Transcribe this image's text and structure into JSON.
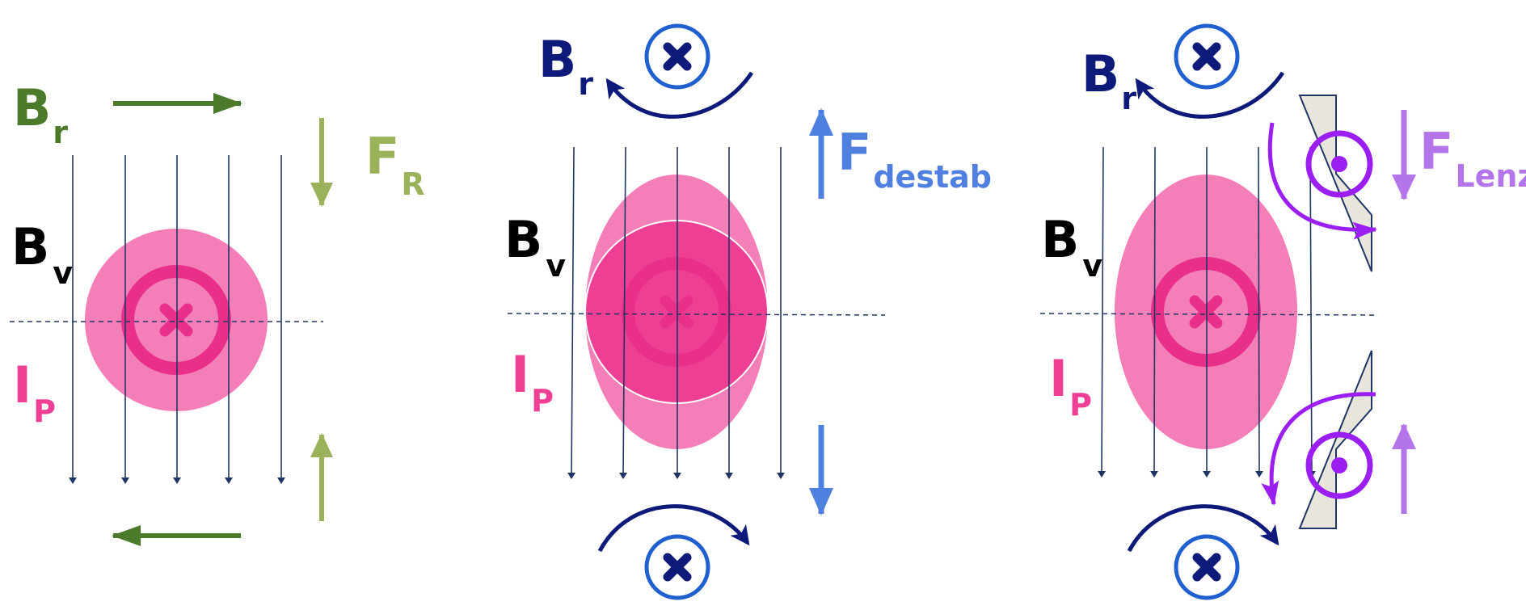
{
  "panels": [
    {
      "id": "equilibrium",
      "labels": {
        "br": {
          "main": "B",
          "sub": "r"
        },
        "fr": {
          "main": "F",
          "sub": "R"
        },
        "bv": {
          "main": "B",
          "sub": "v"
        },
        "ip": {
          "main": "I",
          "sub": "P"
        }
      }
    },
    {
      "id": "destabilizing",
      "labels": {
        "br": {
          "main": "B",
          "sub": "r"
        },
        "fdestab": {
          "main": "F",
          "sub": "destab"
        },
        "bv": {
          "main": "B",
          "sub": "v"
        },
        "ip": {
          "main": "I",
          "sub": "P"
        }
      }
    },
    {
      "id": "lenz",
      "labels": {
        "br": {
          "main": "B",
          "sub": "r"
        },
        "flenz": {
          "main": "F",
          "sub": "Lenz"
        },
        "bv": {
          "main": "B",
          "sub": "v"
        },
        "ip": {
          "main": "I",
          "sub": "P"
        }
      }
    }
  ],
  "colors": {
    "br_green": "#4a7a2a",
    "fr_green": "#9ab35a",
    "navy": "#0d1a7a",
    "fieldline": "#1f3563",
    "pink_light": "#f47eb8",
    "pink_dark": "#ee3f95",
    "pink_ring": "#e8308b",
    "blue_arrow": "#4f7fdf",
    "blue_ring": "#1f5fcf",
    "purple": "#9b1ff2",
    "purple_light": "#b474ea",
    "coil_fill": "#e8e6dc",
    "coil_stroke": "#1f3563"
  },
  "icons": [
    "cross-current-icon",
    "dot-current-icon",
    "arrow-icon"
  ]
}
